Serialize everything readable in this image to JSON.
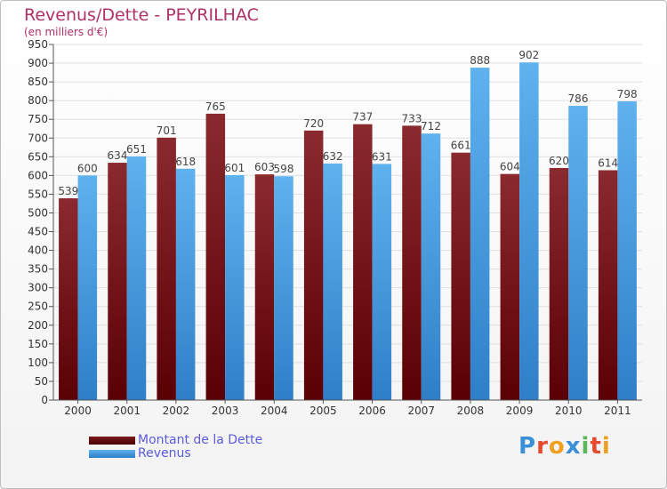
{
  "chart_data": {
    "type": "bar",
    "title": "Revenus/Dette - PEYRILHAC",
    "subtitle": "(en milliers d'€)",
    "categories": [
      "2000",
      "2001",
      "2002",
      "2003",
      "2004",
      "2005",
      "2006",
      "2007",
      "2008",
      "2009",
      "2010",
      "2011"
    ],
    "series": [
      {
        "name": "Montant de la Dette",
        "color": "#7a1a1e",
        "values": [
          539,
          634,
          701,
          765,
          603,
          720,
          737,
          733,
          661,
          604,
          620,
          614
        ]
      },
      {
        "name": "Revenus",
        "color": "#4ea6e6",
        "values": [
          600,
          651,
          618,
          601,
          598,
          632,
          631,
          712,
          888,
          902,
          786,
          798
        ]
      }
    ],
    "ylim": [
      0,
      950
    ],
    "yticks": [
      0,
      50,
      100,
      150,
      200,
      250,
      300,
      350,
      400,
      450,
      500,
      550,
      600,
      650,
      700,
      750,
      800,
      850,
      900,
      950
    ],
    "grid": true,
    "legend_position": "bottom-left"
  },
  "logo_text": "Proxiti"
}
